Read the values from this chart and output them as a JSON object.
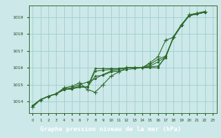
{
  "title": "Graphe pression niveau de la mer (hPa)",
  "background_color": "#cce8e8",
  "grid_color": "#9ecece",
  "line_color": "#2d6a2d",
  "text_color": "#1a4a1a",
  "title_bg_color": "#2d6a2d",
  "title_text_color": "#ffffff",
  "xlim": [
    -0.5,
    23.5
  ],
  "ylim": [
    1013.3,
    1019.7
  ],
  "yticks": [
    1014,
    1015,
    1016,
    1017,
    1018,
    1019
  ],
  "xticks": [
    0,
    1,
    2,
    3,
    4,
    5,
    6,
    7,
    8,
    9,
    10,
    11,
    12,
    13,
    14,
    15,
    16,
    17,
    18,
    19,
    20,
    21,
    22,
    23
  ],
  "series": [
    {
      "x": [
        0,
        1,
        2,
        3,
        4,
        5,
        6,
        7,
        8,
        9,
        10,
        11,
        12,
        13,
        14,
        15,
        16,
        17,
        18,
        19,
        20,
        21,
        22
      ],
      "y": [
        1013.75,
        1014.1,
        1014.3,
        1014.45,
        1014.7,
        1014.75,
        1014.85,
        1014.85,
        1015.95,
        1015.95,
        1015.95,
        1015.95,
        1016.0,
        1016.0,
        1016.0,
        1016.0,
        1016.0,
        1016.7,
        1017.8,
        1018.5,
        1019.1,
        1019.2,
        1019.3
      ],
      "marker": ".",
      "markersize": 3
    },
    {
      "x": [
        0,
        1,
        2,
        3,
        4,
        5,
        6,
        7,
        8,
        9,
        10,
        11,
        12,
        13,
        14,
        15,
        16,
        17,
        18,
        19,
        20,
        21,
        22
      ],
      "y": [
        1013.75,
        1014.1,
        1014.3,
        1014.45,
        1014.7,
        1014.75,
        1014.85,
        1014.85,
        1015.8,
        1015.85,
        1015.9,
        1015.95,
        1016.0,
        1016.0,
        1016.0,
        1016.05,
        1016.1,
        1016.6,
        1017.85,
        1018.55,
        1019.1,
        1019.2,
        1019.3
      ],
      "marker": ".",
      "markersize": 3
    },
    {
      "x": [
        0,
        1,
        2,
        3,
        4,
        5,
        6,
        7,
        8,
        9,
        10,
        11,
        12,
        13,
        14,
        15,
        16,
        17,
        18,
        19,
        20,
        21,
        22
      ],
      "y": [
        1013.75,
        1014.1,
        1014.3,
        1014.45,
        1014.7,
        1014.75,
        1014.9,
        1014.85,
        1015.5,
        1015.55,
        1015.75,
        1015.8,
        1015.9,
        1015.95,
        1016.0,
        1016.1,
        1016.35,
        1016.65,
        1017.85,
        1018.55,
        1019.1,
        1019.2,
        1019.3
      ],
      "marker": ".",
      "markersize": 3
    },
    {
      "x": [
        0,
        1,
        2,
        3,
        4,
        5,
        6,
        7,
        8,
        9,
        10,
        11,
        12,
        13,
        14,
        15,
        16,
        17,
        18,
        19,
        20,
        21,
        22
      ],
      "y": [
        1013.75,
        1014.1,
        1014.3,
        1014.45,
        1014.75,
        1014.8,
        1015.0,
        1015.15,
        1015.35,
        1015.6,
        1015.8,
        1015.9,
        1016.0,
        1016.0,
        1016.0,
        1016.2,
        1016.5,
        1016.7,
        1017.8,
        1018.5,
        1019.1,
        1019.2,
        1019.3
      ],
      "marker": ".",
      "markersize": 3
    },
    {
      "x": [
        0,
        1,
        2,
        3,
        4,
        5,
        6,
        7,
        8,
        9,
        10,
        11,
        12,
        13,
        14,
        15,
        16,
        17,
        18,
        19,
        20,
        21,
        22
      ],
      "y": [
        1013.65,
        1014.1,
        1014.3,
        1014.45,
        1014.8,
        1014.9,
        1015.1,
        1014.7,
        1014.55,
        1015.0,
        1015.5,
        1015.75,
        1016.0,
        1016.0,
        1016.0,
        1016.3,
        1016.65,
        1017.65,
        1017.8,
        1018.55,
        1019.15,
        1019.25,
        1019.35
      ],
      "marker": "+",
      "markersize": 5
    }
  ]
}
